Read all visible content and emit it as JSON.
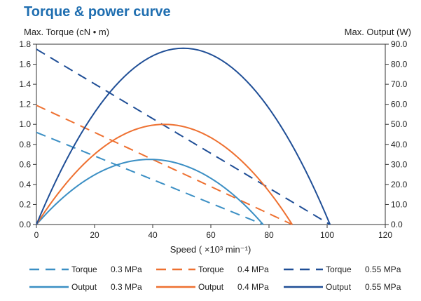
{
  "chart_data": {
    "type": "line",
    "title": "Torque & power curve",
    "xlabel": "Speed",
    "xlabel_unit": "( ×10³ min⁻¹)",
    "ylabel_left": "Max. Torque (cN • m)",
    "ylabel_right": "Max. Output  (W)",
    "xlim": [
      0,
      120
    ],
    "ylim_left": [
      0,
      1.8
    ],
    "ylim_right": [
      0,
      90
    ],
    "x_ticks": [
      "0",
      "20",
      "40",
      "60",
      "80",
      "100",
      "120"
    ],
    "y_left_ticks": [
      "0.0",
      "0.2",
      "0.4",
      "0.6",
      "0.8",
      "1.0",
      "1.2",
      "1.4",
      "1.6",
      "1.8"
    ],
    "y_right_ticks": [
      "0.0",
      "10.0",
      "20.0",
      "30.0",
      "40.0",
      "50.0",
      "60.0",
      "70.0",
      "80.0",
      "90.0"
    ],
    "colors": {
      "p03": "#3b8fc4",
      "p04": "#ee7030",
      "p055": "#1f4e96",
      "axis": "#333333",
      "title": "#1f6eb0"
    },
    "series": [
      {
        "name": "Torque 0.3 MPa",
        "label": "Torque",
        "pressure": "0.3 MPa",
        "kind": "torque",
        "axis": "left",
        "style": "dashed",
        "color": "#3b8fc4",
        "points": [
          [
            0,
            0.92
          ],
          [
            78,
            0.0
          ]
        ]
      },
      {
        "name": "Torque 0.4 MPa",
        "label": "Torque",
        "pressure": "0.4 MPa",
        "kind": "torque",
        "axis": "left",
        "style": "dashed",
        "color": "#ee7030",
        "points": [
          [
            0,
            1.19
          ],
          [
            88,
            0.0
          ]
        ]
      },
      {
        "name": "Torque 0.55 MPa",
        "label": "Torque",
        "pressure": "0.55 MPa",
        "kind": "torque",
        "axis": "left",
        "style": "dashed",
        "color": "#1f4e96",
        "points": [
          [
            0,
            1.75
          ],
          [
            101,
            0.0
          ]
        ]
      },
      {
        "name": "Output 0.3 MPa",
        "label": "Output",
        "pressure": "0.3 MPa",
        "kind": "output",
        "axis": "right",
        "style": "solid",
        "color": "#3b8fc4",
        "peak": [
          39,
          32.5
        ],
        "zero_at": 78
      },
      {
        "name": "Output 0.4 MPa",
        "label": "Output",
        "pressure": "0.4 MPa",
        "kind": "output",
        "axis": "right",
        "style": "solid",
        "color": "#ee7030",
        "peak": [
          44,
          50.0
        ],
        "zero_at": 88
      },
      {
        "name": "Output 0.55 MPa",
        "label": "Output",
        "pressure": "0.55 MPa",
        "kind": "output",
        "axis": "right",
        "style": "solid",
        "color": "#1f4e96",
        "peak": [
          51,
          88.0
        ],
        "zero_at": 101
      }
    ],
    "legend_position": "bottom"
  }
}
